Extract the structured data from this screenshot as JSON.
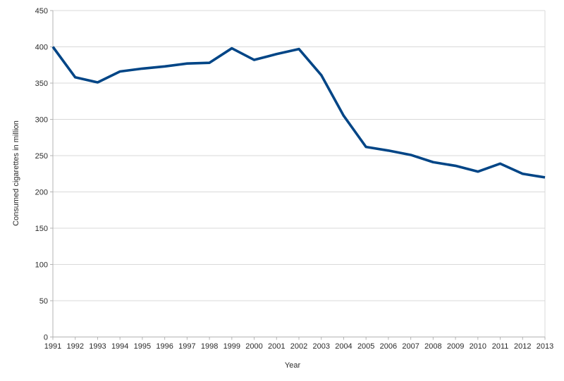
{
  "chart_data": {
    "type": "line",
    "title": "",
    "xlabel": "Year",
    "ylabel": "Consumed cigarettes in million",
    "x": [
      1991,
      1992,
      1993,
      1994,
      1995,
      1996,
      1997,
      1998,
      1999,
      2000,
      2001,
      2002,
      2003,
      2004,
      2005,
      2006,
      2007,
      2008,
      2009,
      2010,
      2011,
      2012,
      2013
    ],
    "values": [
      400,
      358,
      351,
      366,
      370,
      373,
      377,
      378,
      398,
      382,
      390,
      397,
      361,
      305,
      262,
      257,
      251,
      241,
      236,
      228,
      239,
      225,
      220
    ],
    "ylim": [
      0,
      450
    ],
    "yticks": [
      0,
      50,
      100,
      150,
      200,
      250,
      300,
      350,
      400,
      450
    ],
    "grid": true,
    "legend": false,
    "colors": {
      "line": "#004586",
      "grid": "#d9d9d9",
      "axis": "#b3b3b3",
      "text": "#2b2b2b",
      "background": "#ffffff"
    }
  }
}
